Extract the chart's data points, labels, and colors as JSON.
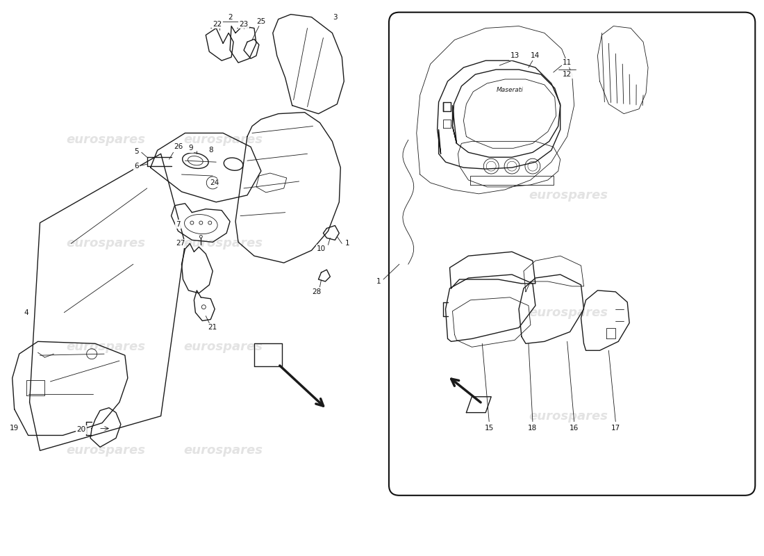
{
  "background_color": "#ffffff",
  "line_color": "#1a1a1a",
  "watermark_color": "#cccccc",
  "watermark_text": "eurospares",
  "fig_width": 11.0,
  "fig_height": 8.0,
  "lw_main": 1.0,
  "lw_thin": 0.6,
  "label_fs": 7.5,
  "wm_fs": 13
}
